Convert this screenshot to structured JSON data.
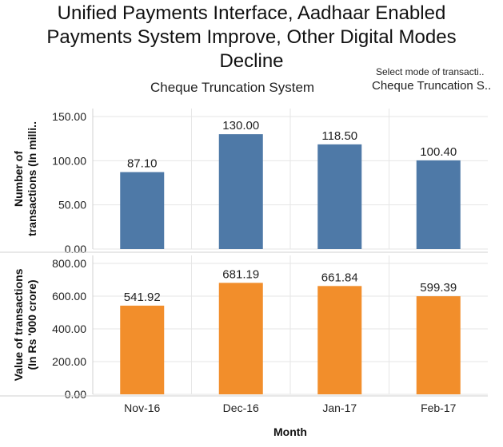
{
  "title_lines": [
    "Unified Payments Interface, Aadhaar Enabled",
    "Payments System Improve, Other Digital Modes",
    "Decline"
  ],
  "subtitle": "Cheque Truncation System",
  "selector": {
    "label": "Select mode of transacti..",
    "value": "Cheque Truncation S.."
  },
  "colors": {
    "top_series": "#4e79a7",
    "bottom_series": "#f28e2b",
    "grid": "#e6e6e6",
    "axis": "#d0d0d0"
  },
  "chart_data": [
    {
      "type": "bar",
      "categories": [
        "Nov-16",
        "Dec-16",
        "Jan-17",
        "Feb-17"
      ],
      "values": [
        87.1,
        130.0,
        118.5,
        100.4
      ],
      "value_labels": [
        "87.10",
        "130.00",
        "118.50",
        "100.40"
      ],
      "ylabel": "Number of transactions (In milli..",
      "ylabel_lines": [
        "Number of",
        "transactions (In milli.."
      ],
      "ylim": [
        0,
        150
      ],
      "yticks": [
        0,
        50,
        100,
        150
      ],
      "ytick_labels": [
        "0.00",
        "50.00",
        "100.00",
        "150.00"
      ]
    },
    {
      "type": "bar",
      "categories": [
        "Nov-16",
        "Dec-16",
        "Jan-17",
        "Feb-17"
      ],
      "values": [
        541.92,
        681.19,
        661.84,
        599.39
      ],
      "value_labels": [
        "541.92",
        "681.19",
        "661.84",
        "599.39"
      ],
      "ylabel": "Value of transactions (In Rs '000 crore)",
      "ylabel_lines": [
        "Value of transactions",
        "(In Rs '000 crore)"
      ],
      "ylim": [
        0,
        800
      ],
      "yticks": [
        0,
        200,
        400,
        600,
        800
      ],
      "ytick_labels": [
        "0.00",
        "200.00",
        "400.00",
        "600.00",
        "800.00"
      ]
    }
  ],
  "xlabel": "Month",
  "x_tick_labels": [
    "Nov-16",
    "Dec-16",
    "Jan-17",
    "Feb-17"
  ]
}
